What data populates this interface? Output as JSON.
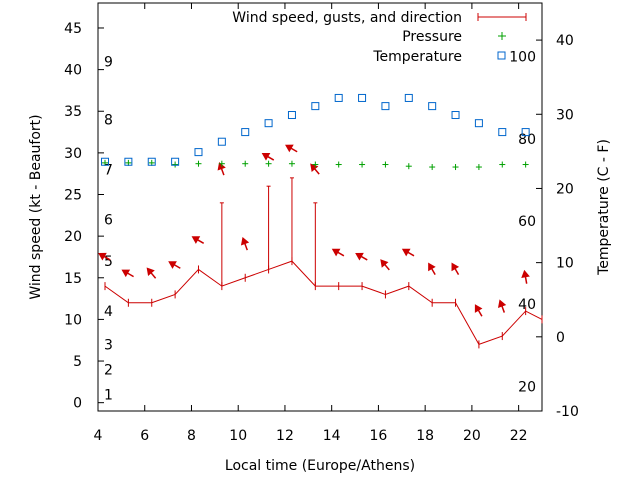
{
  "chart_data": {
    "type": "line",
    "xlabel": "Local time (Europe/Athens)",
    "ylabel_left": "Wind speed (kt - Beaufort)",
    "ylabel_right": "Temperature (C - F)",
    "xlim": [
      4,
      23
    ],
    "ylim_left": [
      -1,
      48
    ],
    "ylim_right": [
      -10,
      45
    ],
    "x_ticks": [
      4,
      6,
      8,
      10,
      12,
      14,
      16,
      18,
      20,
      22
    ],
    "y_left_ticks": [
      0,
      5,
      10,
      15,
      20,
      25,
      30,
      35,
      40,
      45
    ],
    "y_right_ticks": [
      -10,
      0,
      10,
      20,
      30,
      40
    ],
    "beaufort_labels": [
      {
        "label": "1",
        "kt": 1
      },
      {
        "label": "2",
        "kt": 4
      },
      {
        "label": "3",
        "kt": 7
      },
      {
        "label": "4",
        "kt": 11
      },
      {
        "label": "5",
        "kt": 17
      },
      {
        "label": "6",
        "kt": 22
      },
      {
        "label": "7",
        "kt": 28
      },
      {
        "label": "8",
        "kt": 34
      },
      {
        "label": "9",
        "kt": 41
      }
    ],
    "fahrenheit_labels": [
      {
        "label": "20",
        "c": -6.7
      },
      {
        "label": "40",
        "c": 4.4
      },
      {
        "label": "60",
        "c": 15.6
      },
      {
        "label": "80",
        "c": 26.7
      },
      {
        "label": "100",
        "c": 37.8
      }
    ],
    "legend": {
      "wind": "Wind speed, gusts, and direction",
      "pressure": "Pressure",
      "temperature": "Temperature"
    },
    "legend_position": "top-right",
    "colors": {
      "wind": "#cc0000",
      "pressure": "#00a000",
      "temperature": "#0066cc"
    },
    "series": [
      {
        "name": "Wind speed, gusts, and direction",
        "x": [
          4.3,
          5.3,
          6.3,
          7.3,
          8.3,
          9.3,
          10.3,
          11.3,
          12.3,
          13.3,
          14.3,
          15.3,
          16.3,
          17.3,
          18.3,
          19.3,
          20.3,
          21.3,
          22.3,
          23
        ],
        "speed_kt": [
          14,
          12,
          12,
          13,
          16,
          14,
          15,
          16,
          17,
          14,
          14,
          14,
          13,
          14,
          12,
          12,
          7,
          8,
          11,
          10
        ],
        "gust_kt": [
          null,
          null,
          null,
          null,
          null,
          24,
          null,
          26,
          27,
          24,
          null,
          null,
          null,
          null,
          null,
          null,
          null,
          null,
          null,
          null
        ],
        "direction_kt": [
          17.5,
          15.5,
          15.5,
          16.5,
          19.5,
          28,
          19,
          29.5,
          30.5,
          28,
          18,
          17.5,
          16.5,
          18,
          16,
          16,
          11,
          11.5,
          15,
          null
        ],
        "direction_deg": [
          300,
          300,
          320,
          300,
          300,
          340,
          340,
          300,
          300,
          320,
          300,
          300,
          320,
          300,
          330,
          330,
          330,
          340,
          350,
          null
        ]
      },
      {
        "name": "Pressure",
        "x": [
          4.3,
          5.3,
          6.3,
          7.3,
          8.3,
          9.3,
          10.3,
          11.3,
          12.3,
          13.3,
          14.3,
          15.3,
          16.3,
          17.3,
          18.3,
          19.3,
          20.3,
          21.3,
          22.3
        ],
        "y_kt": [
          28.8,
          28.8,
          28.8,
          28.6,
          28.7,
          28.7,
          28.7,
          28.7,
          28.7,
          28.6,
          28.6,
          28.6,
          28.6,
          28.4,
          28.3,
          28.3,
          28.3,
          28.6,
          28.6
        ]
      },
      {
        "name": "Temperature",
        "x": [
          4.3,
          5.3,
          6.3,
          7.3,
          8.3,
          9.3,
          10.3,
          11.3,
          12.3,
          13.3,
          14.3,
          15.3,
          16.3,
          17.3,
          18.3,
          19.3,
          20.3,
          21.3,
          22.3
        ],
        "y_c": [
          23.6,
          23.6,
          23.6,
          23.6,
          24.9,
          26.3,
          27.6,
          28.8,
          29.9,
          31.1,
          32.2,
          32.2,
          31.1,
          32.2,
          31.1,
          29.9,
          28.8,
          27.6,
          27.6
        ]
      }
    ]
  }
}
